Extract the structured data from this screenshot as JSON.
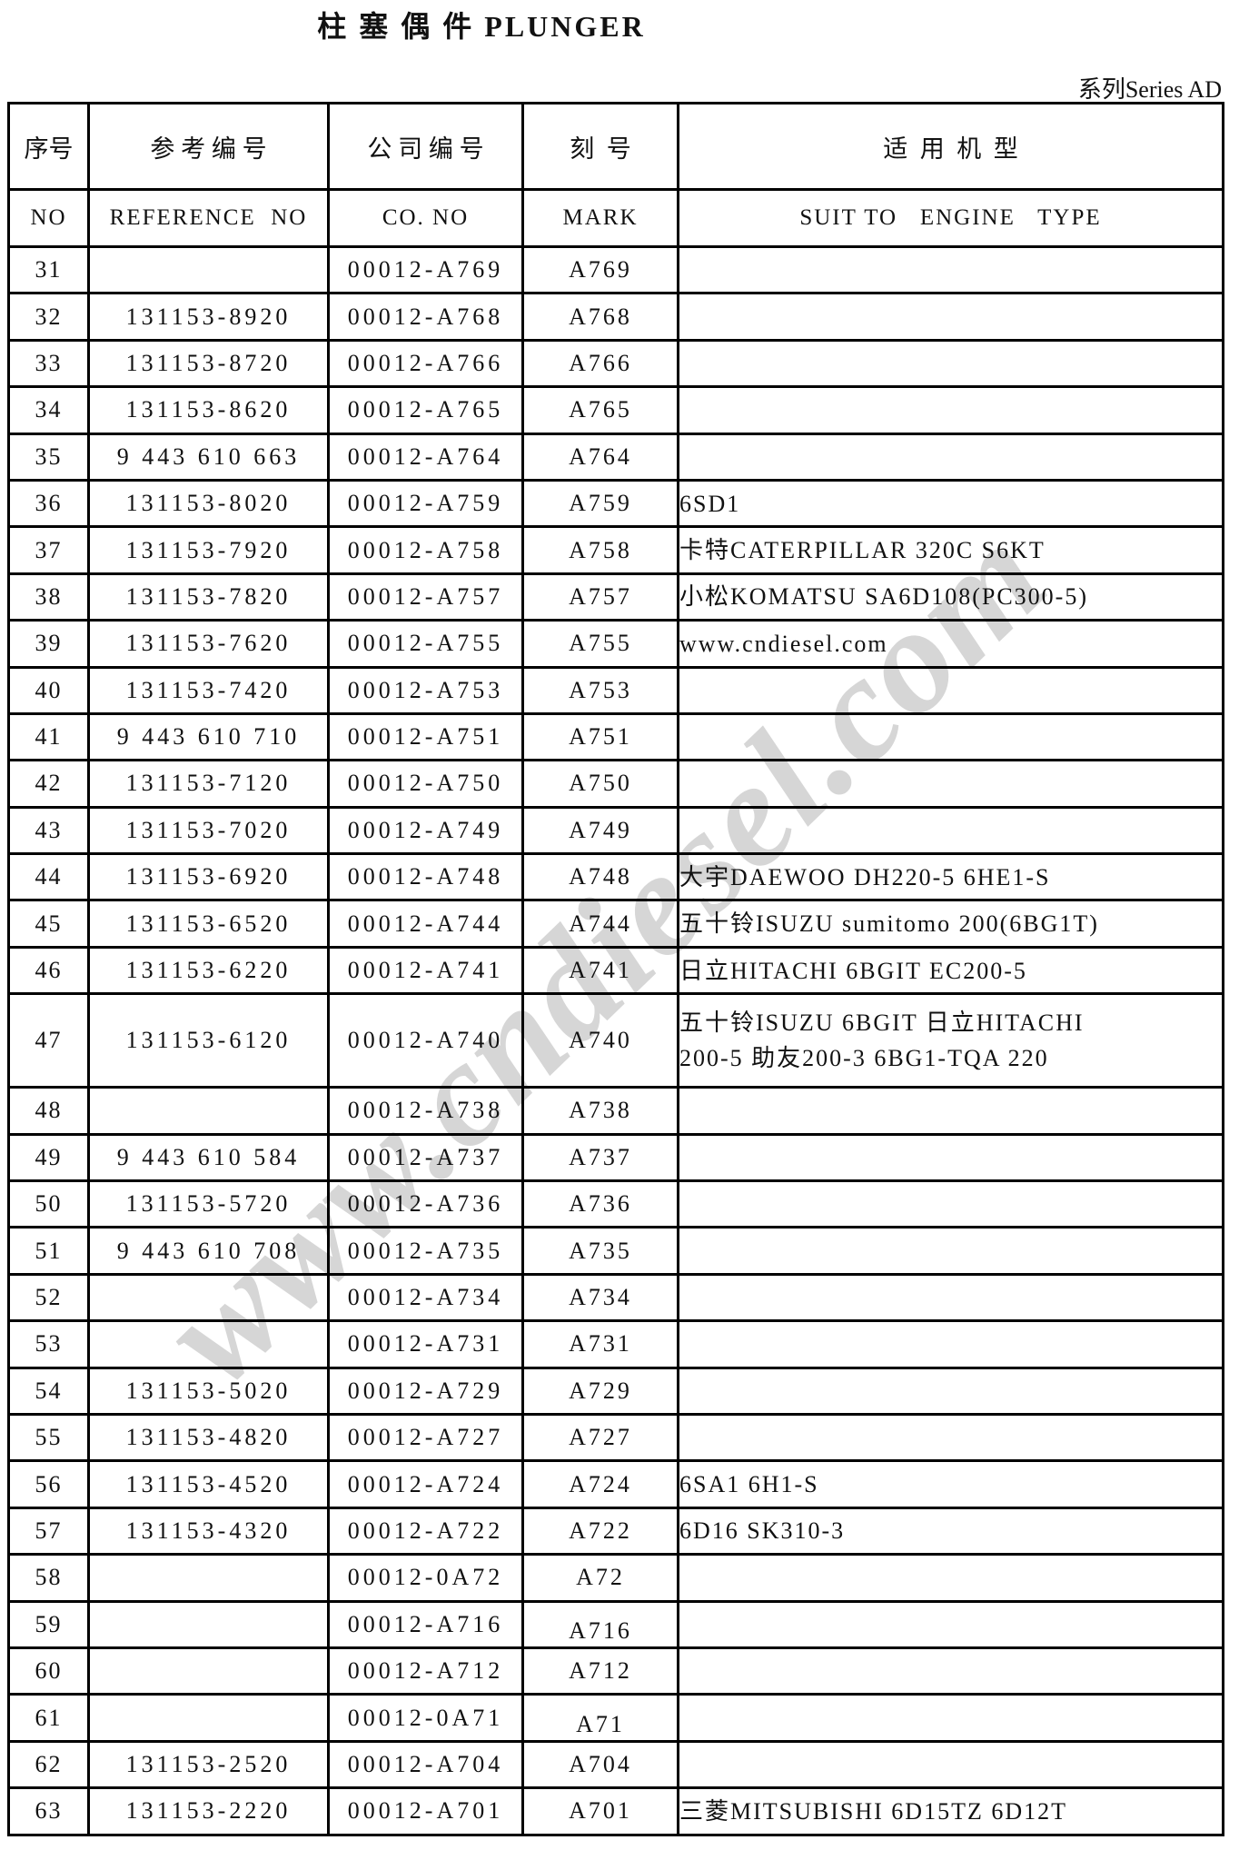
{
  "page": {
    "title": "柱 塞 偶 件 PLUNGER",
    "series_label": "系列Series AD",
    "watermark": "www.cndiesel.com"
  },
  "table": {
    "headers_cn": [
      "序号",
      "参 考 编 号",
      "公 司 编 号",
      "刻  号",
      "适  用  机  型"
    ],
    "headers_en": [
      "NO",
      "REFERENCE  NO",
      "CO. NO",
      "MARK",
      "SUIT TO   ENGINE   TYPE"
    ],
    "rows": [
      {
        "no": "31",
        "ref": "",
        "co": "00012-A769",
        "mark": "A769",
        "engine": ""
      },
      {
        "no": "32",
        "ref": "131153-8920",
        "co": "00012-A768",
        "mark": "A768",
        "engine": ""
      },
      {
        "no": "33",
        "ref": "131153-8720",
        "co": "00012-A766",
        "mark": "A766",
        "engine": ""
      },
      {
        "no": "34",
        "ref": "131153-8620",
        "co": "00012-A765",
        "mark": "A765",
        "engine": ""
      },
      {
        "no": "35",
        "ref": "9 443 610 663",
        "co": "00012-A764",
        "mark": "A764",
        "engine": ""
      },
      {
        "no": "36",
        "ref": "131153-8020",
        "co": "00012-A759",
        "mark": "A759",
        "engine": "6SD1"
      },
      {
        "no": "37",
        "ref": "131153-7920",
        "co": "00012-A758",
        "mark": "A758",
        "engine": "卡特CATERPILLAR 320C S6KT"
      },
      {
        "no": "38",
        "ref": "131153-7820",
        "co": "00012-A757",
        "mark": "A757",
        "engine": "小松KOMATSU SA6D108(PC300-5)"
      },
      {
        "no": "39",
        "ref": "131153-7620",
        "co": "00012-A755",
        "mark": "A755",
        "engine": "www.cndiesel.com"
      },
      {
        "no": "40",
        "ref": "131153-7420",
        "co": "00012-A753",
        "mark": "A753",
        "engine": ""
      },
      {
        "no": "41",
        "ref": "9 443 610 710",
        "co": "00012-A751",
        "mark": "A751",
        "engine": ""
      },
      {
        "no": "42",
        "ref": "131153-7120",
        "co": "00012-A750",
        "mark": "A750",
        "engine": ""
      },
      {
        "no": "43",
        "ref": "131153-7020",
        "co": "00012-A749",
        "mark": "A749",
        "engine": ""
      },
      {
        "no": "44",
        "ref": "131153-6920",
        "co": "00012-A748",
        "mark": "A748",
        "engine": "大宇DAEWOO DH220-5 6HE1-S"
      },
      {
        "no": "45",
        "ref": "131153-6520",
        "co": "00012-A744",
        "mark": "A744",
        "engine": "五十铃ISUZU sumitomo 200(6BG1T)"
      },
      {
        "no": "46",
        "ref": "131153-6220",
        "co": "00012-A741",
        "mark": "A741",
        "engine": "日立HITACHI 6BGIT EC200-5"
      },
      {
        "no": "47",
        "ref": "131153-6120",
        "co": "00012-A740",
        "mark": "A740",
        "engine": "五十铃ISUZU 6BGIT 日立HITACHI",
        "engine2": "200-5 助友200-3 6BG1-TQA 220",
        "tall": true
      },
      {
        "no": "48",
        "ref": "",
        "co": "00012-A738",
        "mark": "A738",
        "engine": ""
      },
      {
        "no": "49",
        "ref": "9 443 610 584",
        "co": "00012-A737",
        "mark": "A737",
        "engine": ""
      },
      {
        "no": "50",
        "ref": "131153-5720",
        "co": "00012-A736",
        "mark": "A736",
        "engine": ""
      },
      {
        "no": "51",
        "ref": "9 443 610 708",
        "co": "00012-A735",
        "mark": "A735",
        "engine": ""
      },
      {
        "no": "52",
        "ref": "",
        "co": "00012-A734",
        "mark": "A734",
        "engine": ""
      },
      {
        "no": "53",
        "ref": "",
        "co": "00012-A731",
        "mark": "A731",
        "engine": ""
      },
      {
        "no": "54",
        "ref": "131153-5020",
        "co": "00012-A729",
        "mark": "A729",
        "engine": ""
      },
      {
        "no": "55",
        "ref": "131153-4820",
        "co": "00012-A727",
        "mark": "A727",
        "engine": ""
      },
      {
        "no": "56",
        "ref": "131153-4520",
        "co": "00012-A724",
        "mark": "A724",
        "engine": "6SA1 6H1-S"
      },
      {
        "no": "57",
        "ref": "131153-4320",
        "co": "00012-A722",
        "mark": "A722",
        "engine": "6D16 SK310-3"
      },
      {
        "no": "58",
        "ref": "",
        "co": "00012-0A72",
        "mark": "A72",
        "engine": ""
      },
      {
        "no": "59",
        "ref": "",
        "co": "00012-A716",
        "mark": "A716",
        "engine": "",
        "mark_low": true
      },
      {
        "no": "60",
        "ref": "",
        "co": "00012-A712",
        "mark": "A712",
        "engine": ""
      },
      {
        "no": "61",
        "ref": "",
        "co": "00012-0A71",
        "mark": "A71",
        "engine": "",
        "mark_low": true
      },
      {
        "no": "62",
        "ref": "131153-2520",
        "co": "00012-A704",
        "mark": "A704",
        "engine": ""
      },
      {
        "no": "63",
        "ref": "131153-2220",
        "co": "00012-A701",
        "mark": "A701",
        "engine": "三菱MITSUBISHI 6D15TZ 6D12T"
      }
    ]
  }
}
